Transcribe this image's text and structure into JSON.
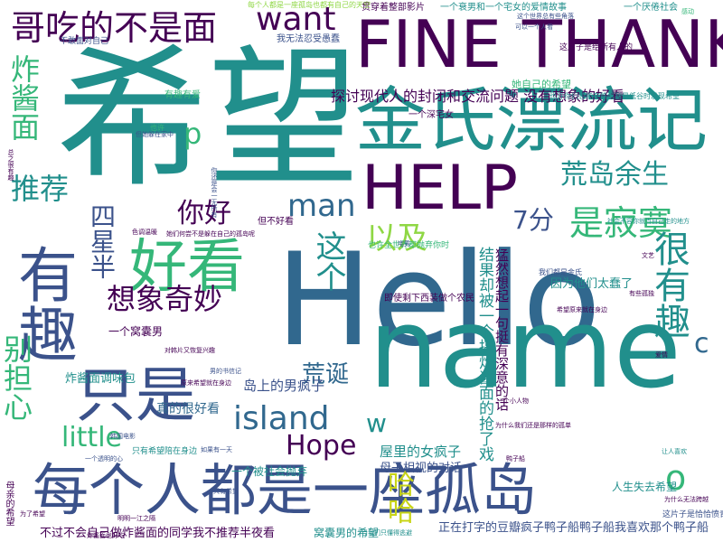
{
  "colors": {
    "background": "#ffffff",
    "teal": "#218f8c",
    "blue": "#31688e",
    "purple": "#440154",
    "indigo": "#3b528b",
    "green": "#35b779",
    "lime": "#8fd744",
    "yellow": "#c8d416"
  },
  "words": {
    "xiwang": "希望",
    "hello": "Hello",
    "name": "name",
    "fine_thank": "FINE THANK",
    "help": "HELP",
    "jinshi": "金氏漂流记",
    "youqu": "有趣",
    "haokan": "好看",
    "zhishi": "只是",
    "meige": "每个人都是一座孤岛",
    "want": "want",
    "gechi": "哥吃的不是面",
    "zhajiangmian": "炸酱面",
    "tuijian": "推荐",
    "nihao": "你好",
    "man": "man",
    "yiji": "以及",
    "zhege": "这个",
    "shijimo": "是寂寞",
    "hendhuangdao": "荒岛余生",
    "qifen": "7分",
    "henyouqu": "很有趣",
    "xiangxiang": "想象奇妙",
    "sixingban": "四星半",
    "biedanxin": "别担心",
    "island": "island",
    "huangdan": "荒诞",
    "hope": "Hope",
    "little": "little",
    "w": "w",
    "o": "o",
    "c": "c",
    "haha": "哈哈",
    "p": "p",
    "tantao": "探讨现代人的封闭和交流问题 没有想象的好看",
    "meiyouxiangxiang": "没有想象的好看",
    "jieguo": "结果却被一个搞炸酱面的抢了戏",
    "mengran": "猛然想起一句挺有深意的话",
    "yinwei": "因为他们太蠢了",
    "daoshang": "岛上的男疯子",
    "wulide": "屋里的女疯子",
    "muzi": "母子相视的对话",
    "yigewonang": "一个窝囊男",
    "yigebeishehui": "一个被社会抛弃",
    "zhendehenhaokan": "真的很好看",
    "zhajiangtiaowei": "炸酱面调味包",
    "buguo": "不过不会自己做炸酱面的同学我不推荐半夜看",
    "wonangnan": "窝囊男的希望",
    "zhengzai": "正在打字的豆瓣疯子鸭子船鸭子船我喜欢那个鸭子船",
    "renshengshiqu": "人生失去希望",
    "geiyourenmen": "这片子是给所有人的",
    "yigeshuai": "一个衰男和一个宅女的爱情故事",
    "yigeyanbei": "一个厌倦社会",
    "guanchuan": "贯穿着整部影片",
    "wofa": "我无法忍受愚蠢",
    "yigeshenzhai": "一个深宅女",
    "taziji": "她自己的希望",
    "yexu": "也许你们总能在跌落到最低谷时发现希望",
    "yexushijie": "也许全世界都抛弃你时",
    "jishi": "即使剩下西装做个农民",
    "danbuhaokan": "但不好看",
    "youqufanyou": "有趣有爱",
    "bugan": "不敢面对自己",
    "mifu": "母亲的希望",
    "wenzhong": "但一个人就是一个岛屿",
    "shehuiyu": "社会不容你就当自己走的地方",
    "xiwangmeihong": "只有希望陪在身边",
    "huishang": "为什么我们还是那样的孤单",
    "wangmen": "为什么无法跨越",
    "qinxin": "这片子是恰恰愤青的",
    "small1": "每个人都是一座孤岛也都有自己的天空",
    "small2": "你还是会一无所有",
    "small3": "但她躲在家中",
    "small4": "也许",
    "small5": "总之很有趣",
    "small6": "色调温暖",
    "small7": "她们何尝不是躲在自己的孤岛呢",
    "small8": "原来希望就在身边",
    "small9": "对韩片又恢复兴趣",
    "small10": "男的书信记",
    "small11": "韩国电影",
    "small12": "只有希望",
    "small13": "如果有一天",
    "small14": "我们都是金氏",
    "small15": "有些孤独",
    "small16": "爱情",
    "small17": "希望原来就在身边",
    "small18": "一个透明的心",
    "small19": "明明一江之隔",
    "small20": "当我们只懂得逃避",
    "small21": "文艺",
    "small22": "一个小人物",
    "small23": "宅男",
    "small24": "让人喜欢",
    "small25": "鸭子船",
    "small26": "这个世界总有些角落",
    "small27": "可以一个人看",
    "small28": "感动",
    "small29": "为了希望",
    "small30": "炸酱面也好吃"
  }
}
